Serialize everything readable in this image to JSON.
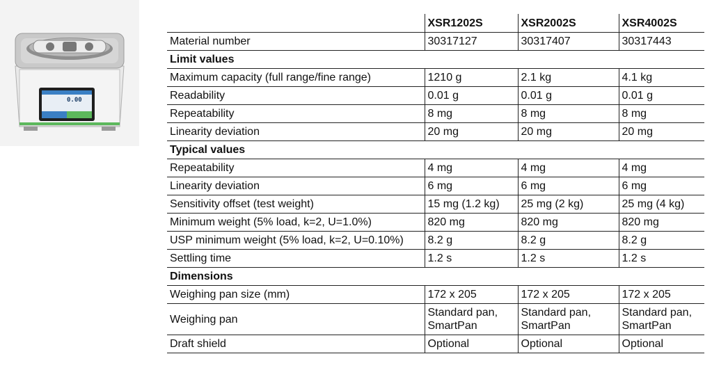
{
  "headers": [
    "XSR1202S",
    "XSR2002S",
    "XSR4002S"
  ],
  "material": {
    "label": "Material number",
    "values": [
      "30317127",
      "30317407",
      "30317443"
    ]
  },
  "sections": [
    {
      "title": "Limit values",
      "rows": [
        {
          "label": "Maximum capacity (full range/fine range)",
          "values": [
            "1210 g",
            "2.1 kg",
            "4.1 kg"
          ]
        },
        {
          "label": "Readability",
          "values": [
            "0.01 g",
            "0.01 g",
            "0.01 g"
          ]
        },
        {
          "label": "Repeatability",
          "values": [
            "8 mg",
            "8 mg",
            "8 mg"
          ]
        },
        {
          "label": "Linearity deviation",
          "values": [
            "20 mg",
            "20 mg",
            "20 mg"
          ]
        }
      ]
    },
    {
      "title": "Typical values",
      "rows": [
        {
          "label": "Repeatability",
          "values": [
            "4 mg",
            "4 mg",
            "4 mg"
          ]
        },
        {
          "label": "Linearity deviation",
          "values": [
            "6 mg",
            "6 mg",
            "6 mg"
          ]
        },
        {
          "label": "Sensitivity offset (test weight)",
          "values": [
            "15 mg (1.2 kg)",
            "25 mg (2 kg)",
            "25 mg (4 kg)"
          ]
        },
        {
          "label": "Minimum weight (5% load, k=2, U=1.0%)",
          "values": [
            "820 mg",
            "820 mg",
            "820 mg"
          ]
        },
        {
          "label": "USP minimum weight  (5% load, k=2, U=0.10%)",
          "values": [
            "8.2 g",
            "8.2 g",
            "8.2 g"
          ]
        },
        {
          "label": "Settling time",
          "values": [
            "1.2 s",
            "1.2 s",
            "1.2 s"
          ]
        }
      ]
    },
    {
      "title": "Dimensions",
      "rows": [
        {
          "label": "Weighing pan size (mm)",
          "values": [
            "172 x 205",
            "172 x 205",
            "172 x 205"
          ]
        },
        {
          "label": "Weighing pan",
          "values": [
            "Standard pan, SmartPan",
            "Standard pan, SmartPan",
            "Standard pan, SmartPan"
          ]
        },
        {
          "label": "Draft shield",
          "values": [
            "Optional",
            "Optional",
            "Optional"
          ]
        }
      ]
    }
  ],
  "display": {
    "reading": "0.00"
  },
  "colors": {
    "accent_green": "#5cb85c",
    "screen_blue": "#3a7fc4"
  }
}
